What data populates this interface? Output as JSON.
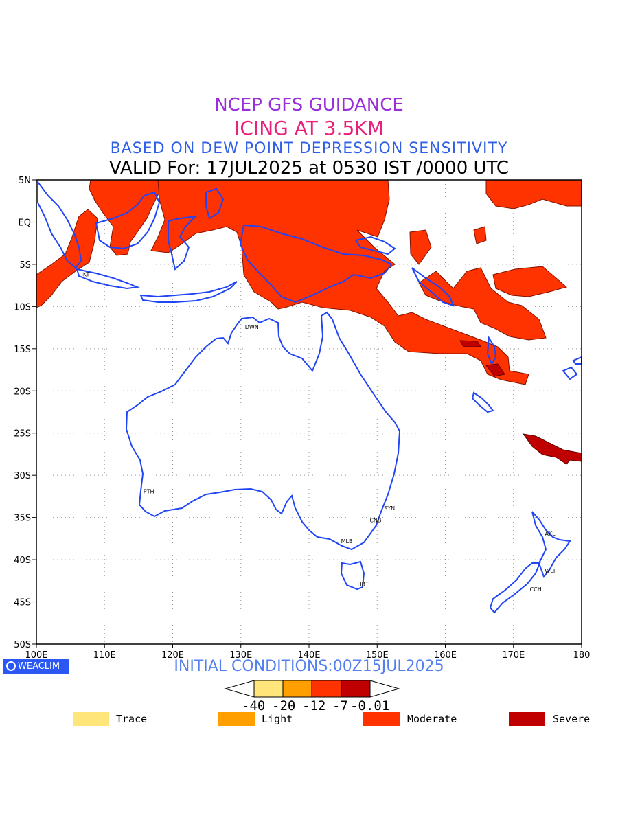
{
  "titles": {
    "line1": "NCEP GFS GUIDANCE",
    "line2": "ICING AT 3.5KM",
    "line3": "BASED ON DEW POINT DEPRESSION SENSITIVITY",
    "line4": "VALID For: 17JUL2025 at 0530 IST /0000 UTC"
  },
  "colors": {
    "line1": "#9a2ed8",
    "line2": "#e8207a",
    "line3": "#2f5fe8",
    "line4": "#000000",
    "coast": "#1f45f5",
    "trace": "#ffe57a",
    "light": "#ffa000",
    "moderate": "#ff3300",
    "severe": "#c00000",
    "logo_bg": "#2b58f5",
    "init": "#5580f0"
  },
  "axes": {
    "x_ticks": [
      "100E",
      "110E",
      "120E",
      "130E",
      "140E",
      "150E",
      "160E",
      "170E",
      "180"
    ],
    "y_ticks": [
      "5N",
      "EQ",
      "5S",
      "10S",
      "15S",
      "20S",
      "25S",
      "30S",
      "35S",
      "40S",
      "45S",
      "50S"
    ],
    "lon_range": [
      100,
      180
    ],
    "lat_range": [
      -50,
      5
    ]
  },
  "cities": [
    {
      "name": "JKT",
      "lon": 106.8,
      "lat": -6.2
    },
    {
      "name": "DWN",
      "lon": 130.8,
      "lat": -12.4
    },
    {
      "name": "PTH",
      "lon": 115.9,
      "lat": -31.9
    },
    {
      "name": "SYN",
      "lon": 151.2,
      "lat": -33.9
    },
    {
      "name": "CNB",
      "lon": 149.1,
      "lat": -35.3
    },
    {
      "name": "MLB",
      "lon": 144.9,
      "lat": -37.8
    },
    {
      "name": "HBT",
      "lon": 147.3,
      "lat": -42.9
    },
    {
      "name": "AKL",
      "lon": 174.8,
      "lat": -36.9
    },
    {
      "name": "WLT",
      "lon": 174.8,
      "lat": -41.3
    },
    {
      "name": "CCH",
      "lon": 172.6,
      "lat": -43.5
    }
  ],
  "logo": "WEACLIM",
  "initial_conditions": "INITIAL CONDITIONS:00Z15JUL2025",
  "colorbar": {
    "values": [
      "-40",
      "-20",
      "-12",
      "-7",
      "-0.01"
    ]
  },
  "legend": [
    {
      "label": "Trace",
      "color": "#ffe57a"
    },
    {
      "label": "Light",
      "color": "#ffa000"
    },
    {
      "label": "Moderate",
      "color": "#ff3300"
    },
    {
      "label": "Severe",
      "color": "#c00000"
    }
  ]
}
